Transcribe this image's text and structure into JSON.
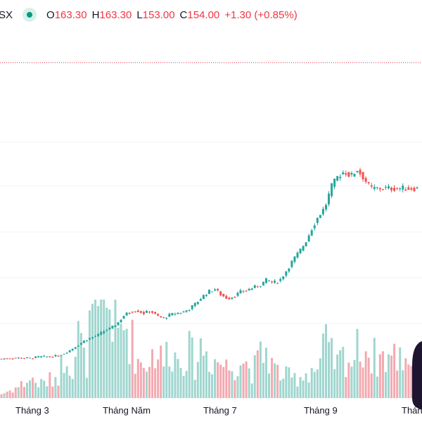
{
  "legend": {
    "symbol": "SX",
    "open_key": "O",
    "open_val": "163.30",
    "high_key": "H",
    "high_val": "163.30",
    "low_key": "L",
    "low_val": "153.00",
    "close_key": "C",
    "close_val": "154.00",
    "change": "+1.30 (+0.85%)"
  },
  "colors": {
    "up": "#26a69a",
    "down": "#ef5350",
    "up_volume": "#9fd6cf",
    "down_volume": "#f4a9b0",
    "status": "#089981",
    "reference_line": "#f23645"
  },
  "chart_data": {
    "type": "candlestick",
    "title": "",
    "xlabel": "",
    "ylabel": "",
    "x_tick_labels": [
      "Tháng 3",
      "Tháng Năm",
      "Tháng 7",
      "Tháng 9",
      "Tháng"
    ],
    "reference_price": 154.0,
    "price_range": [
      40,
      165
    ],
    "price_points": [
      [
        0,
        44.0
      ],
      [
        5,
        44.6
      ],
      [
        9,
        44.4
      ],
      [
        12,
        45.3
      ],
      [
        15,
        45.2
      ],
      [
        18,
        46.0
      ],
      [
        20,
        47.8
      ],
      [
        22,
        50.0
      ],
      [
        24,
        52.5
      ],
      [
        26,
        55.0
      ],
      [
        28,
        56.5
      ],
      [
        30,
        58.0
      ],
      [
        32,
        60.5
      ],
      [
        34,
        62.0
      ],
      [
        36,
        65.0
      ],
      [
        38,
        69.5
      ],
      [
        40,
        71.5
      ],
      [
        42,
        72.0
      ],
      [
        44,
        70.5
      ],
      [
        46,
        72.0
      ],
      [
        48,
        69.0
      ],
      [
        50,
        67.5
      ],
      [
        52,
        69.5
      ],
      [
        54,
        70.5
      ],
      [
        56,
        71.0
      ],
      [
        58,
        73.0
      ],
      [
        60,
        76.0
      ],
      [
        62,
        80.0
      ],
      [
        64,
        83.0
      ],
      [
        66,
        84.5
      ],
      [
        68,
        81.0
      ],
      [
        70,
        79.0
      ],
      [
        72,
        80.5
      ],
      [
        74,
        83.0
      ],
      [
        76,
        84.0
      ],
      [
        78,
        85.5
      ],
      [
        80,
        87.0
      ],
      [
        82,
        90.0
      ],
      [
        84,
        88.0
      ],
      [
        86,
        89.5
      ],
      [
        88,
        95.0
      ],
      [
        90,
        101.0
      ],
      [
        92,
        106.0
      ],
      [
        94,
        112.0
      ],
      [
        96,
        120.0
      ],
      [
        98,
        127.0
      ],
      [
        100,
        132.0
      ],
      [
        102,
        144.0
      ],
      [
        104,
        150.0
      ],
      [
        106,
        153.0
      ],
      [
        108,
        150.0
      ],
      [
        110,
        154.0
      ],
      [
        112,
        149.0
      ],
      [
        114,
        143.0
      ]
    ],
    "volume_points": [
      [
        0,
        3
      ],
      [
        5,
        8
      ],
      [
        9,
        14
      ],
      [
        12,
        10
      ],
      [
        15,
        13
      ],
      [
        18,
        18
      ],
      [
        20,
        38
      ],
      [
        22,
        22
      ],
      [
        24,
        48
      ],
      [
        26,
        20
      ],
      [
        28,
        60
      ],
      [
        30,
        52
      ],
      [
        32,
        72
      ],
      [
        34,
        65
      ],
      [
        36,
        44
      ],
      [
        38,
        55
      ],
      [
        40,
        45
      ],
      [
        42,
        28
      ],
      [
        44,
        25
      ],
      [
        46,
        30
      ],
      [
        48,
        36
      ],
      [
        50,
        25
      ],
      [
        52,
        40
      ],
      [
        54,
        28
      ],
      [
        56,
        32
      ],
      [
        58,
        34
      ],
      [
        60,
        25
      ],
      [
        62,
        40
      ],
      [
        64,
        30
      ],
      [
        66,
        28
      ],
      [
        68,
        26
      ],
      [
        70,
        22
      ],
      [
        72,
        25
      ],
      [
        74,
        30
      ],
      [
        76,
        24
      ],
      [
        78,
        20
      ],
      [
        80,
        30
      ],
      [
        82,
        35
      ],
      [
        84,
        22
      ],
      [
        86,
        18
      ],
      [
        88,
        16
      ],
      [
        90,
        14
      ],
      [
        92,
        16
      ],
      [
        94,
        18
      ],
      [
        96,
        22
      ],
      [
        98,
        20
      ],
      [
        100,
        40
      ],
      [
        102,
        30
      ],
      [
        104,
        24
      ],
      [
        106,
        32
      ],
      [
        108,
        26
      ],
      [
        110,
        35
      ],
      [
        112,
        40
      ],
      [
        114,
        30
      ]
    ]
  }
}
